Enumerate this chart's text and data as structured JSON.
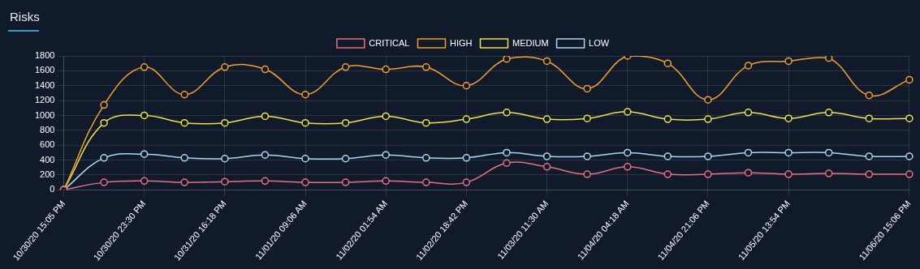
{
  "chart_data": {
    "type": "line",
    "title": "Risks",
    "categories": [
      "10/30/20 15:05 PM",
      null,
      "10/30/20 23:30 PM",
      null,
      "10/31/20 16:18 PM",
      null,
      "11/01/20 09:06 AM",
      null,
      "11/02/20 01:54 AM",
      null,
      "11/02/20 18:42 PM",
      null,
      "11/03/20 11:30 AM",
      null,
      "11/04/20 04:18 AM",
      null,
      "11/04/20 21:06 PM",
      null,
      "11/05/20 13:54 PM",
      null,
      null,
      "11/06/20 15:06 PM"
    ],
    "series": [
      {
        "name": "CRITICAL",
        "color": "#e8707f",
        "values": [
          0,
          100,
          120,
          100,
          110,
          120,
          100,
          100,
          120,
          100,
          100,
          360,
          310,
          210,
          310,
          210,
          210,
          230,
          210,
          220,
          210,
          210
        ]
      },
      {
        "name": "HIGH",
        "color": "#f0a030",
        "values": [
          0,
          1140,
          1650,
          1280,
          1650,
          1620,
          1280,
          1650,
          1620,
          1650,
          1400,
          1760,
          1730,
          1360,
          1800,
          1700,
          1210,
          1670,
          1730,
          1770,
          1270,
          1480
        ]
      },
      {
        "name": "MEDIUM",
        "color": "#f0e050",
        "values": [
          0,
          900,
          1000,
          900,
          900,
          990,
          900,
          900,
          990,
          900,
          950,
          1040,
          950,
          960,
          1050,
          950,
          950,
          1040,
          960,
          1040,
          960,
          960
        ]
      },
      {
        "name": "LOW",
        "color": "#a8d8f0",
        "values": [
          0,
          430,
          480,
          430,
          420,
          470,
          420,
          420,
          470,
          430,
          430,
          500,
          450,
          450,
          500,
          450,
          450,
          500,
          500,
          500,
          450,
          450
        ]
      }
    ],
    "ylim": [
      0,
      1800
    ],
    "yticks": [
      0,
      200,
      400,
      600,
      800,
      1000,
      1200,
      1400,
      1600,
      1800
    ],
    "grid": true,
    "legend": "top",
    "marker": "circle",
    "line_style": "solid"
  }
}
